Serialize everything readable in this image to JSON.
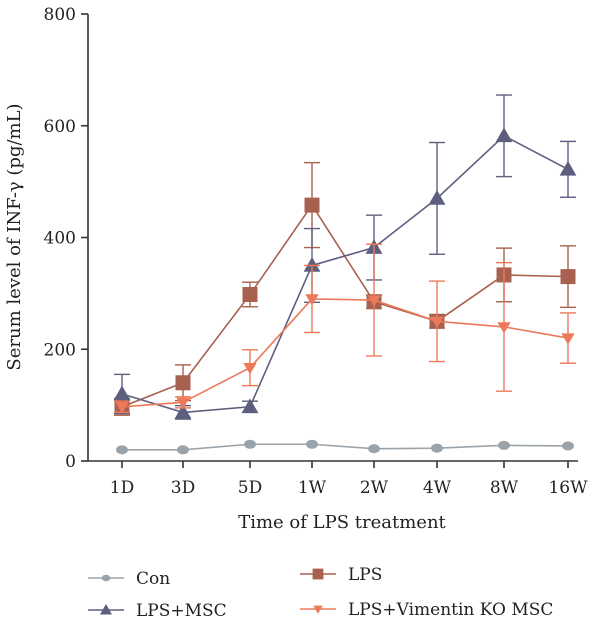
{
  "chart_data": {
    "type": "line",
    "title": "",
    "xlabel": "Time of LPS treatment",
    "ylabel": "Serum level of INF-γ (pg/mL)",
    "ylim": [
      0,
      800
    ],
    "yticks": [
      0,
      200,
      400,
      600,
      800
    ],
    "categories": [
      "1D",
      "3D",
      "5D",
      "1W",
      "2W",
      "4W",
      "8W",
      "16W"
    ],
    "grid": false,
    "legend_position": "bottom",
    "series": [
      {
        "name": "Con",
        "color": "#9aa3aa",
        "marker": "circle",
        "values": [
          20,
          20,
          30,
          30,
          22,
          23,
          28,
          27
        ],
        "errors": [
          0,
          0,
          0,
          0,
          0,
          0,
          0,
          0
        ]
      },
      {
        "name": "LPS",
        "color": "#a8614e",
        "marker": "square",
        "values": [
          97,
          140,
          298,
          458,
          285,
          250,
          333,
          330
        ],
        "errors": [
          15,
          32,
          22,
          76,
          12,
          12,
          48,
          55
        ]
      },
      {
        "name": "LPS+MSC",
        "color": "#5e5f7e",
        "marker": "triangle-up",
        "values": [
          120,
          87,
          97,
          350,
          382,
          470,
          582,
          522
        ],
        "errors": [
          35,
          12,
          10,
          66,
          58,
          100,
          73,
          50
        ]
      },
      {
        "name": "LPS+Vimentin KO MSC",
        "color": "#ec7a5a",
        "marker": "triangle-down",
        "values": [
          97,
          105,
          167,
          290,
          288,
          250,
          240,
          220
        ],
        "errors": [
          10,
          10,
          32,
          60,
          100,
          72,
          115,
          45
        ]
      }
    ]
  }
}
